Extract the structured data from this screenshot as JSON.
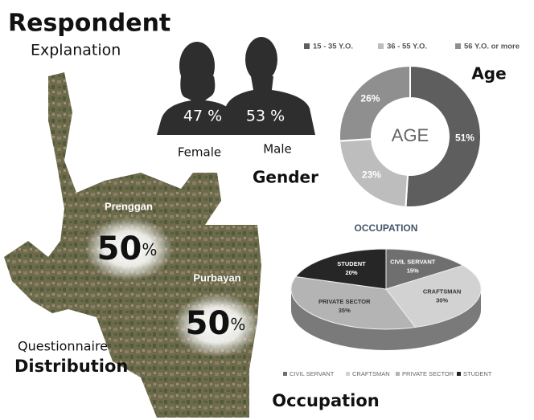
{
  "header": {
    "title": "Respondent",
    "subtitle": "Explanation"
  },
  "gender": {
    "title": "Gender",
    "female": {
      "label": "Female",
      "percent": "47 %"
    },
    "male": {
      "label": "Male",
      "percent": "53 %"
    }
  },
  "map": {
    "title": "Questionnaire",
    "subtitle": "Distribution",
    "areas": [
      {
        "name": "Prenggan",
        "percent": "50",
        "unit": "%"
      },
      {
        "name": "Purbayan",
        "percent": "50",
        "unit": "%"
      }
    ]
  },
  "chart_data": [
    {
      "type": "donut",
      "title": "Age",
      "center_label": "AGE",
      "categories": [
        "15 - 35 Y.O.",
        "36 - 55 Y.O.",
        "56 Y.O. or more"
      ],
      "values": [
        51,
        23,
        26
      ],
      "value_labels": [
        "51%",
        "23%",
        "26%"
      ],
      "colors": [
        "#5e5e5e",
        "#bdbdbd",
        "#8f8f8f"
      ],
      "legend": "top"
    },
    {
      "type": "pie3d",
      "title": "OCCUPATION",
      "caption": "Occupation",
      "categories": [
        "CIVIL SERVANT",
        "CRAFTSMAN",
        "PRIVATE SECTOR",
        "STUDENT"
      ],
      "values": [
        15,
        30,
        35,
        20
      ],
      "value_labels": [
        "15%",
        "30%",
        "35%",
        "20%"
      ],
      "colors": [
        "#6f6f6f",
        "#d2d2d2",
        "#b4b4b4",
        "#262626"
      ],
      "legend": "bottom"
    }
  ]
}
